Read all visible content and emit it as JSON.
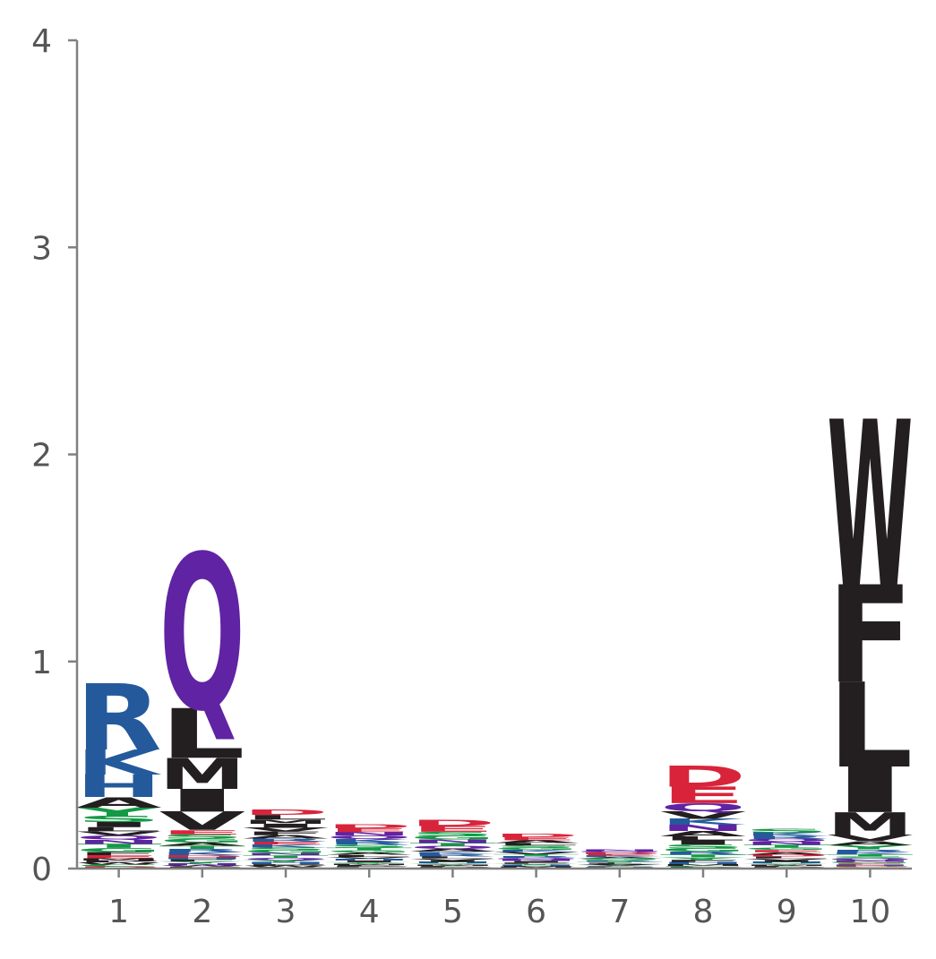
{
  "chart_data": {
    "type": "sequence-logo",
    "title": "",
    "xlabel": "",
    "ylabel": "",
    "ylim": [
      0,
      4
    ],
    "yticks": [
      "0",
      "1",
      "2",
      "3",
      "4"
    ],
    "positions": [
      "1",
      "2",
      "3",
      "4",
      "5",
      "6",
      "7",
      "8",
      "9",
      "10"
    ],
    "colors": {
      "basic": "#245a9c",
      "hydrophobic": "#231f20",
      "polar": "#139a45",
      "amide": "#6023a3",
      "acidic": "#d8243a"
    },
    "letter_color_groups": {
      "R": "basic",
      "K": "basic",
      "H": "basic",
      "A": "hydrophobic",
      "V": "hydrophobic",
      "L": "hydrophobic",
      "I": "hydrophobic",
      "M": "hydrophobic",
      "F": "hydrophobic",
      "W": "hydrophobic",
      "P": "hydrophobic",
      "G": "polar",
      "S": "polar",
      "T": "polar",
      "Y": "polar",
      "C": "polar",
      "Q": "amide",
      "N": "amide",
      "D": "acidic",
      "E": "acidic"
    },
    "stacks": [
      [
        [
          "R",
          0.32
        ],
        [
          "K",
          0.12
        ],
        [
          "H",
          0.11
        ],
        [
          "A",
          0.05
        ],
        [
          "Y",
          0.04
        ],
        [
          "S",
          0.03
        ],
        [
          "I",
          0.025
        ],
        [
          "G",
          0.02
        ],
        [
          "T",
          0.02
        ],
        [
          "N",
          0.02
        ],
        [
          "Q",
          0.02
        ],
        [
          "V",
          0.02
        ],
        [
          "L",
          0.02
        ],
        [
          "E",
          0.015
        ],
        [
          "F",
          0.015
        ],
        [
          "D",
          0.01
        ],
        [
          "C",
          0.01
        ],
        [
          "W",
          0.01
        ],
        [
          "P",
          0.01
        ],
        [
          "M",
          0.01
        ]
      ],
      [
        [
          "Q",
          0.75
        ],
        [
          "L",
          0.24
        ],
        [
          "M",
          0.15
        ],
        [
          "I",
          0.11
        ],
        [
          "V",
          0.09
        ],
        [
          "G",
          0.02
        ],
        [
          "S",
          0.02
        ],
        [
          "E",
          0.02
        ],
        [
          "K",
          0.015
        ],
        [
          "R",
          0.015
        ],
        [
          "T",
          0.015
        ],
        [
          "A",
          0.015
        ],
        [
          "N",
          0.01
        ],
        [
          "Y",
          0.01
        ],
        [
          "F",
          0.01
        ],
        [
          "H",
          0.01
        ],
        [
          "D",
          0.01
        ],
        [
          "C",
          0.005
        ],
        [
          "P",
          0.005
        ],
        [
          "W",
          0.005
        ]
      ],
      [
        [
          "D",
          0.025
        ],
        [
          "L",
          0.022
        ],
        [
          "I",
          0.02
        ],
        [
          "M",
          0.02
        ],
        [
          "F",
          0.018
        ],
        [
          "V",
          0.018
        ],
        [
          "A",
          0.016
        ],
        [
          "R",
          0.015
        ],
        [
          "K",
          0.014
        ],
        [
          "E",
          0.014
        ],
        [
          "G",
          0.013
        ],
        [
          "S",
          0.013
        ],
        [
          "T",
          0.012
        ],
        [
          "N",
          0.012
        ],
        [
          "Q",
          0.011
        ],
        [
          "H",
          0.01
        ],
        [
          "Y",
          0.01
        ],
        [
          "P",
          0.008
        ],
        [
          "W",
          0.007
        ],
        [
          "C",
          0.006
        ]
      ],
      [
        [
          "D",
          0.02
        ],
        [
          "E",
          0.019
        ],
        [
          "N",
          0.017
        ],
        [
          "Q",
          0.016
        ],
        [
          "K",
          0.015
        ],
        [
          "R",
          0.014
        ],
        [
          "S",
          0.013
        ],
        [
          "G",
          0.012
        ],
        [
          "T",
          0.012
        ],
        [
          "A",
          0.011
        ],
        [
          "L",
          0.01
        ],
        [
          "V",
          0.009
        ],
        [
          "I",
          0.008
        ],
        [
          "H",
          0.008
        ],
        [
          "Y",
          0.007
        ],
        [
          "F",
          0.006
        ],
        [
          "M",
          0.006
        ],
        [
          "P",
          0.005
        ],
        [
          "C",
          0.004
        ],
        [
          "W",
          0.003
        ]
      ],
      [
        [
          "D",
          0.03
        ],
        [
          "E",
          0.028
        ],
        [
          "S",
          0.02
        ],
        [
          "G",
          0.018
        ],
        [
          "N",
          0.016
        ],
        [
          "T",
          0.015
        ],
        [
          "Q",
          0.014
        ],
        [
          "A",
          0.013
        ],
        [
          "K",
          0.012
        ],
        [
          "R",
          0.011
        ],
        [
          "L",
          0.01
        ],
        [
          "V",
          0.009
        ],
        [
          "I",
          0.008
        ],
        [
          "H",
          0.007
        ],
        [
          "Y",
          0.006
        ],
        [
          "F",
          0.005
        ],
        [
          "M",
          0.005
        ],
        [
          "P",
          0.004
        ],
        [
          "C",
          0.003
        ],
        [
          "W",
          0.002
        ]
      ],
      [
        [
          "D",
          0.016
        ],
        [
          "E",
          0.015
        ],
        [
          "A",
          0.013
        ],
        [
          "L",
          0.012
        ],
        [
          "G",
          0.011
        ],
        [
          "S",
          0.011
        ],
        [
          "V",
          0.01
        ],
        [
          "K",
          0.01
        ],
        [
          "R",
          0.009
        ],
        [
          "T",
          0.009
        ],
        [
          "N",
          0.008
        ],
        [
          "Q",
          0.008
        ],
        [
          "I",
          0.007
        ],
        [
          "F",
          0.006
        ],
        [
          "H",
          0.005
        ],
        [
          "Y",
          0.005
        ],
        [
          "M",
          0.004
        ],
        [
          "P",
          0.004
        ],
        [
          "C",
          0.003
        ],
        [
          "W",
          0.002
        ]
      ],
      [
        [
          "N",
          0.009
        ],
        [
          "Q",
          0.008
        ],
        [
          "K",
          0.007
        ],
        [
          "E",
          0.007
        ],
        [
          "D",
          0.007
        ],
        [
          "S",
          0.006
        ],
        [
          "G",
          0.006
        ],
        [
          "A",
          0.006
        ],
        [
          "L",
          0.005
        ],
        [
          "T",
          0.005
        ],
        [
          "R",
          0.005
        ],
        [
          "V",
          0.004
        ],
        [
          "I",
          0.004
        ],
        [
          "H",
          0.003
        ],
        [
          "F",
          0.003
        ],
        [
          "Y",
          0.003
        ],
        [
          "M",
          0.002
        ],
        [
          "P",
          0.002
        ],
        [
          "C",
          0.001
        ],
        [
          "W",
          0.001
        ]
      ],
      [
        [
          "D",
          0.1
        ],
        [
          "E",
          0.08
        ],
        [
          "Q",
          0.04
        ],
        [
          "V",
          0.035
        ],
        [
          "N",
          0.03
        ],
        [
          "K",
          0.03
        ],
        [
          "A",
          0.025
        ],
        [
          "I",
          0.02
        ],
        [
          "L",
          0.02
        ],
        [
          "S",
          0.018
        ],
        [
          "G",
          0.016
        ],
        [
          "T",
          0.014
        ],
        [
          "R",
          0.014
        ],
        [
          "Y",
          0.012
        ],
        [
          "H",
          0.01
        ],
        [
          "F",
          0.01
        ],
        [
          "M",
          0.008
        ],
        [
          "C",
          0.006
        ],
        [
          "P",
          0.005
        ],
        [
          "W",
          0.003
        ]
      ],
      [
        [
          "S",
          0.018
        ],
        [
          "K",
          0.016
        ],
        [
          "R",
          0.015
        ],
        [
          "N",
          0.014
        ],
        [
          "Q",
          0.014
        ],
        [
          "T",
          0.013
        ],
        [
          "G",
          0.012
        ],
        [
          "A",
          0.011
        ],
        [
          "E",
          0.011
        ],
        [
          "D",
          0.01
        ],
        [
          "V",
          0.009
        ],
        [
          "L",
          0.009
        ],
        [
          "I",
          0.008
        ],
        [
          "H",
          0.007
        ],
        [
          "Y",
          0.006
        ],
        [
          "F",
          0.005
        ],
        [
          "M",
          0.005
        ],
        [
          "P",
          0.004
        ],
        [
          "C",
          0.003
        ],
        [
          "W",
          0.002
        ]
      ],
      [
        [
          "W",
          0.8
        ],
        [
          "F",
          0.47
        ],
        [
          "L",
          0.41
        ],
        [
          "I",
          0.22
        ],
        [
          "M",
          0.11
        ],
        [
          "V",
          0.03
        ],
        [
          "Y",
          0.02
        ],
        [
          "A",
          0.02
        ],
        [
          "K",
          0.012
        ],
        [
          "R",
          0.012
        ],
        [
          "S",
          0.01
        ],
        [
          "T",
          0.01
        ],
        [
          "G",
          0.008
        ],
        [
          "N",
          0.008
        ],
        [
          "Q",
          0.008
        ],
        [
          "H",
          0.006
        ],
        [
          "E",
          0.006
        ],
        [
          "D",
          0.005
        ],
        [
          "P",
          0.004
        ],
        [
          "C",
          0.004
        ]
      ]
    ]
  }
}
